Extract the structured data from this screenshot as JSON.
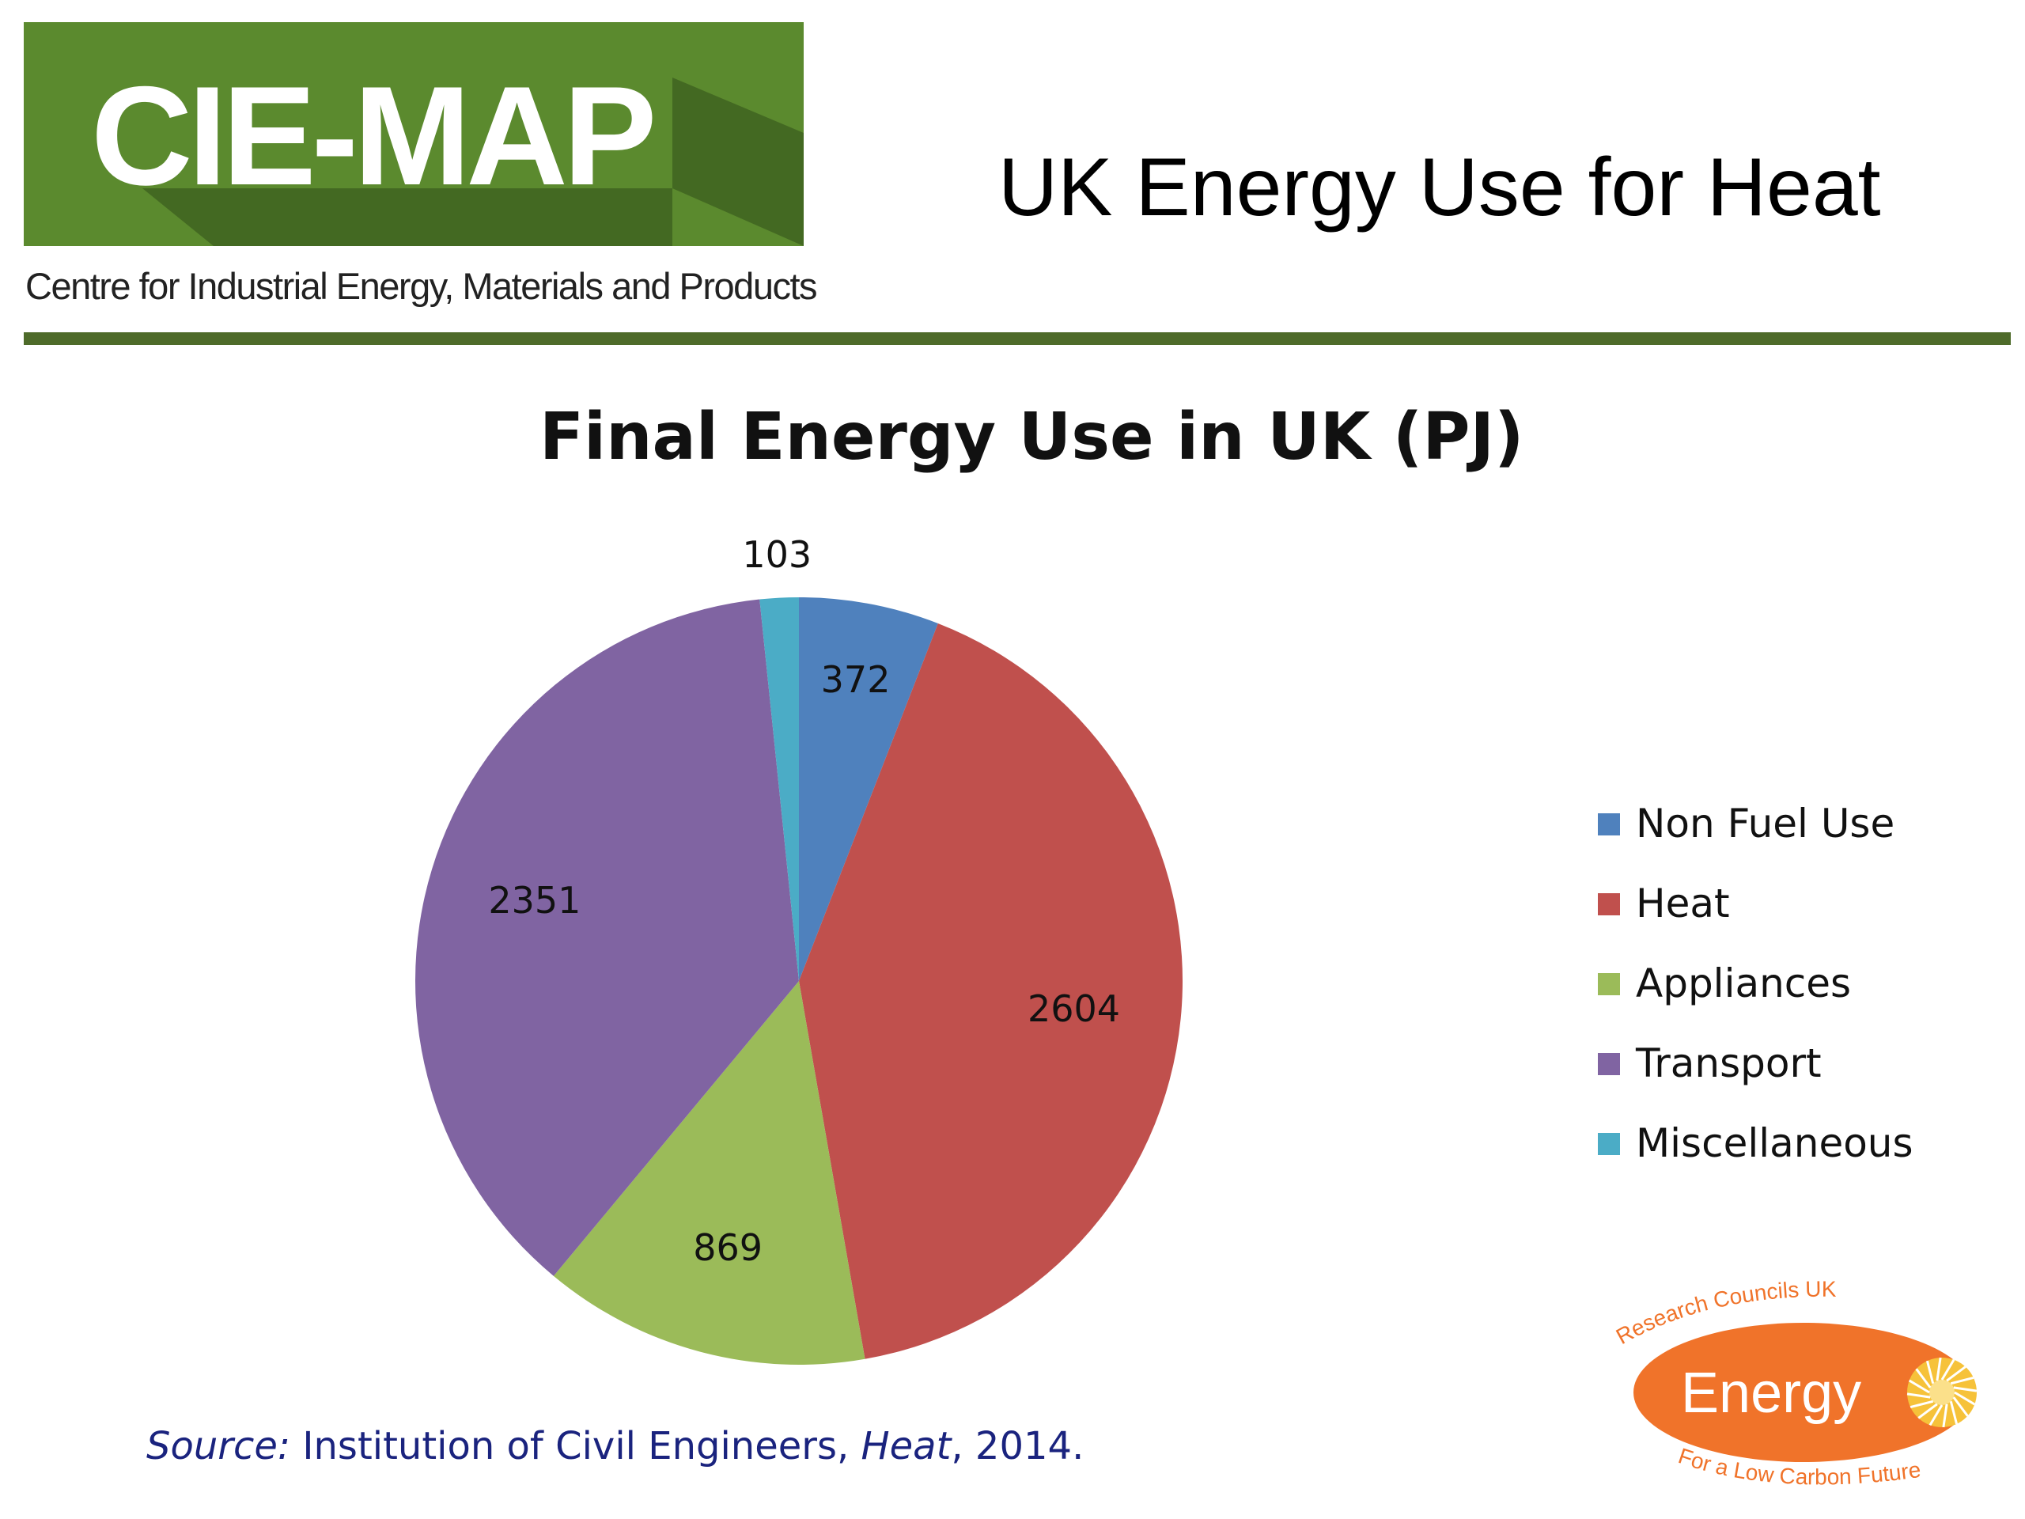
{
  "header": {
    "logo_text": "CIE-MAP",
    "logo_subtitle": "Centre for Industrial Energy, Materials and Products",
    "slide_title": "UK Energy Use for Heat"
  },
  "colors": {
    "logo_green": "#5b8a2e",
    "logo_shadow": "#3f6320",
    "rule_green": "#4e6b2a",
    "source_text": "#1a237e",
    "rcuk_orange": "#f0732a",
    "rcuk_sun": "#f6c23a"
  },
  "chart_data": {
    "type": "pie",
    "title": "Final Energy Use in UK (PJ)",
    "legend_position": "right",
    "slices": [
      {
        "name": "Non Fuel Use",
        "value": 372,
        "color": "#4f81bd"
      },
      {
        "name": "Heat",
        "value": 2604,
        "color": "#c0504d"
      },
      {
        "name": "Appliances",
        "value": 869,
        "color": "#9bbb59"
      },
      {
        "name": "Transport",
        "value": 2351,
        "color": "#8064a2"
      },
      {
        "name": "Miscellaneous",
        "value": 103,
        "color": "#4bacc6"
      }
    ]
  },
  "source": {
    "prefix": "Source:",
    "body": " Institution of Civil Engineers, ",
    "work": "Heat",
    "suffix": ", 2014."
  },
  "rcuk_logo": {
    "top_text": "Research Councils UK",
    "main_text": "Energy",
    "bottom_text": "For a Low Carbon Future"
  }
}
